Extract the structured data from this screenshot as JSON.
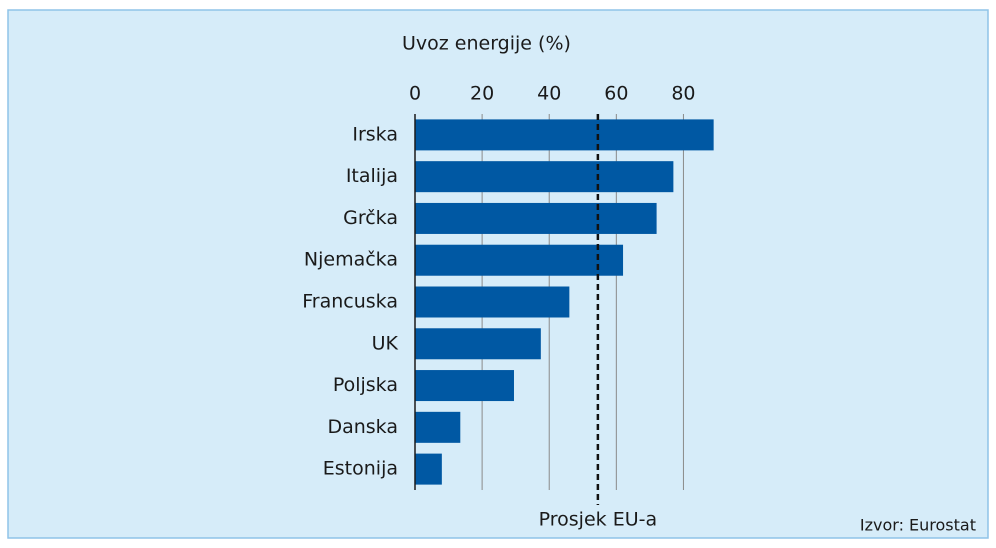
{
  "chart_data": {
    "type": "bar",
    "orientation": "horizontal",
    "title": "Uvoz energije (%)",
    "categories": [
      "Irska",
      "Italija",
      "Grčka",
      "Njemačka",
      "Francuska",
      "UK",
      "Poljska",
      "Danska",
      "Estonija"
    ],
    "values": [
      89,
      77,
      72,
      62,
      46,
      37.5,
      29.5,
      13.5,
      8
    ],
    "color": "#0058a3",
    "xlim": [
      0,
      90
    ],
    "xticks": [
      0,
      20,
      40,
      60,
      80
    ],
    "grid": true,
    "reference_line": {
      "value": 54.5,
      "label": "Prosjek EU-a"
    },
    "source": "Izvor: Eurostat"
  }
}
